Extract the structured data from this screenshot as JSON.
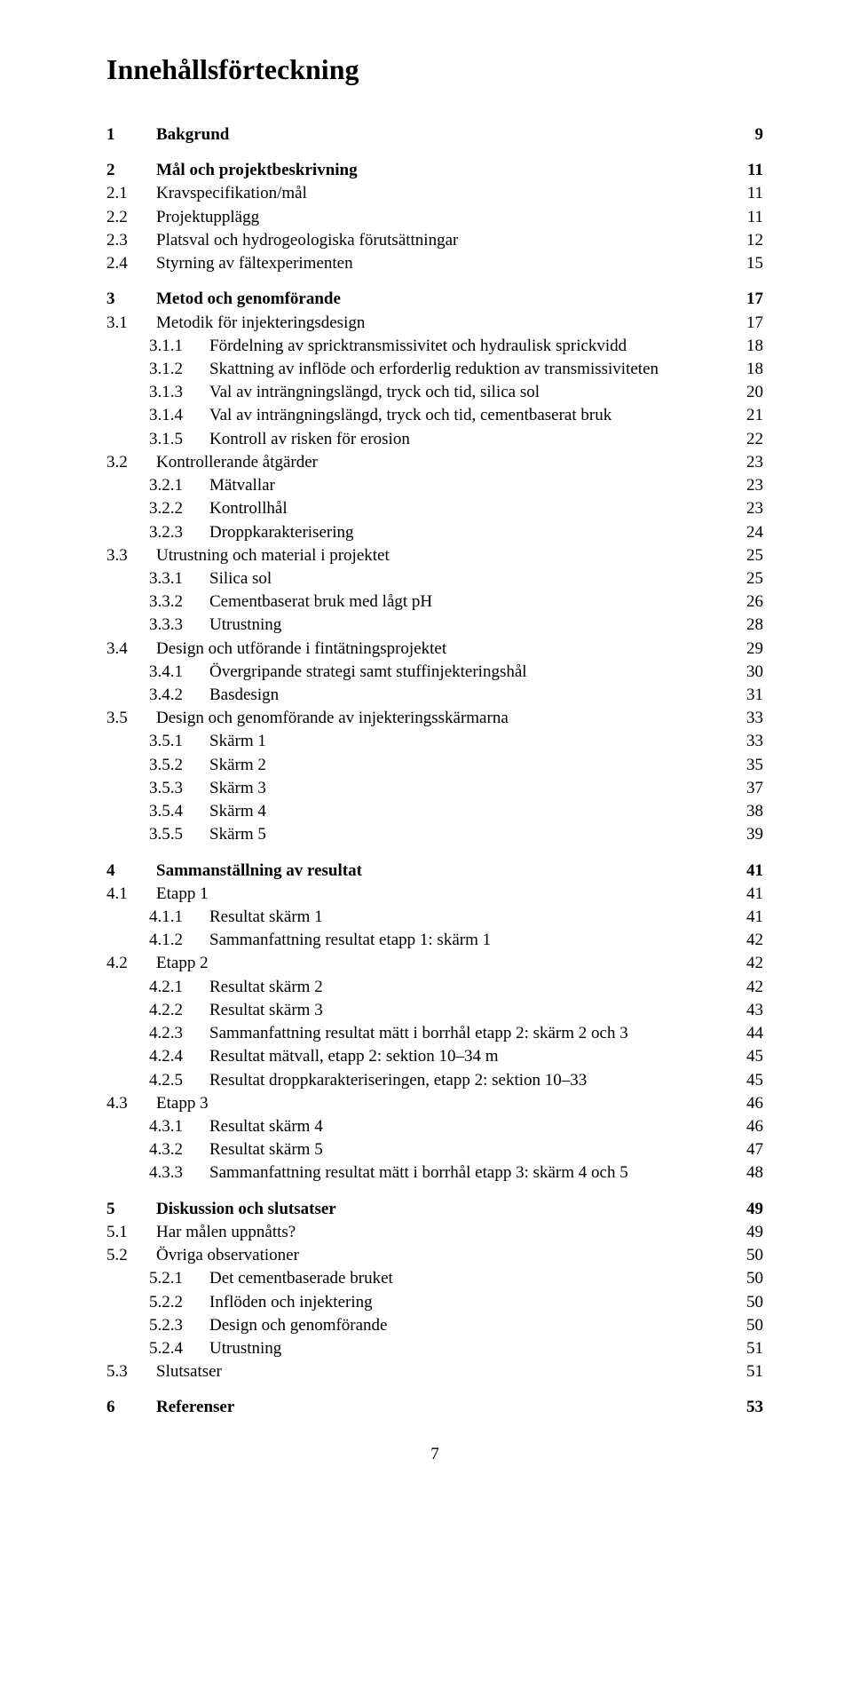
{
  "title": "Innehållsförteckning",
  "page_number": "7",
  "entries": [
    {
      "level": 1,
      "bold": true,
      "num": "1",
      "text": "Bakgrund",
      "page": "9",
      "gap_before": false
    },
    {
      "level": 1,
      "bold": true,
      "num": "2",
      "text": "Mål och projektbeskrivning",
      "page": "11",
      "gap_before": true
    },
    {
      "level": 2,
      "bold": false,
      "num": "2.1",
      "text": "Kravspecifikation/mål",
      "page": "11"
    },
    {
      "level": 2,
      "bold": false,
      "num": "2.2",
      "text": "Projektupplägg",
      "page": "11"
    },
    {
      "level": 2,
      "bold": false,
      "num": "2.3",
      "text": "Platsval och hydrogeologiska förutsättningar",
      "page": "12"
    },
    {
      "level": 2,
      "bold": false,
      "num": "2.4",
      "text": "Styrning av fältexperimenten",
      "page": "15"
    },
    {
      "level": 1,
      "bold": true,
      "num": "3",
      "text": "Metod och genomförande",
      "page": "17",
      "gap_before": true
    },
    {
      "level": 2,
      "bold": false,
      "num": "3.1",
      "text": "Metodik för injekteringsdesign",
      "page": "17"
    },
    {
      "level": 3,
      "bold": false,
      "num": "3.1.1",
      "text": "Fördelning av spricktransmissivitet och hydraulisk sprickvidd",
      "page": "18"
    },
    {
      "level": 3,
      "bold": false,
      "num": "3.1.2",
      "text": "Skattning av inflöde och erforderlig reduktion av transmissiviteten",
      "page": "18"
    },
    {
      "level": 3,
      "bold": false,
      "num": "3.1.3",
      "text": "Val av inträngningslängd, tryck och tid, silica sol",
      "page": "20"
    },
    {
      "level": 3,
      "bold": false,
      "num": "3.1.4",
      "text": "Val av inträngningslängd, tryck och tid, cementbaserat bruk",
      "page": "21"
    },
    {
      "level": 3,
      "bold": false,
      "num": "3.1.5",
      "text": "Kontroll av risken för erosion",
      "page": "22"
    },
    {
      "level": 2,
      "bold": false,
      "num": "3.2",
      "text": "Kontrollerande åtgärder",
      "page": "23"
    },
    {
      "level": 3,
      "bold": false,
      "num": "3.2.1",
      "text": "Mätvallar",
      "page": "23"
    },
    {
      "level": 3,
      "bold": false,
      "num": "3.2.2",
      "text": "Kontrollhål",
      "page": "23"
    },
    {
      "level": 3,
      "bold": false,
      "num": "3.2.3",
      "text": "Droppkarakterisering",
      "page": "24"
    },
    {
      "level": 2,
      "bold": false,
      "num": "3.3",
      "text": "Utrustning och material i projektet",
      "page": "25"
    },
    {
      "level": 3,
      "bold": false,
      "num": "3.3.1",
      "text": "Silica sol",
      "page": "25"
    },
    {
      "level": 3,
      "bold": false,
      "num": "3.3.2",
      "text": "Cementbaserat bruk med lågt pH",
      "page": "26"
    },
    {
      "level": 3,
      "bold": false,
      "num": "3.3.3",
      "text": "Utrustning",
      "page": "28"
    },
    {
      "level": 2,
      "bold": false,
      "num": "3.4",
      "text": "Design och utförande i fintätningsprojektet",
      "page": "29"
    },
    {
      "level": 3,
      "bold": false,
      "num": "3.4.1",
      "text": "Övergripande strategi samt stuffinjekteringshål",
      "page": "30"
    },
    {
      "level": 3,
      "bold": false,
      "num": "3.4.2",
      "text": "Basdesign",
      "page": "31"
    },
    {
      "level": 2,
      "bold": false,
      "num": "3.5",
      "text": "Design och genomförande av injekteringsskärmarna",
      "page": "33"
    },
    {
      "level": 3,
      "bold": false,
      "num": "3.5.1",
      "text": "Skärm 1",
      "page": "33"
    },
    {
      "level": 3,
      "bold": false,
      "num": "3.5.2",
      "text": "Skärm 2",
      "page": "35"
    },
    {
      "level": 3,
      "bold": false,
      "num": "3.5.3",
      "text": "Skärm 3",
      "page": "37"
    },
    {
      "level": 3,
      "bold": false,
      "num": "3.5.4",
      "text": "Skärm 4",
      "page": "38"
    },
    {
      "level": 3,
      "bold": false,
      "num": "3.5.5",
      "text": "Skärm 5",
      "page": "39"
    },
    {
      "level": 1,
      "bold": true,
      "num": "4",
      "text": "Sammanställning av resultat",
      "page": "41",
      "gap_before": true
    },
    {
      "level": 2,
      "bold": false,
      "num": "4.1",
      "text": "Etapp 1",
      "page": "41"
    },
    {
      "level": 3,
      "bold": false,
      "num": "4.1.1",
      "text": "Resultat skärm 1",
      "page": "41"
    },
    {
      "level": 3,
      "bold": false,
      "num": "4.1.2",
      "text": "Sammanfattning resultat etapp 1: skärm 1",
      "page": "42"
    },
    {
      "level": 2,
      "bold": false,
      "num": "4.2",
      "text": "Etapp 2",
      "page": "42"
    },
    {
      "level": 3,
      "bold": false,
      "num": "4.2.1",
      "text": "Resultat skärm 2",
      "page": "42"
    },
    {
      "level": 3,
      "bold": false,
      "num": "4.2.2",
      "text": "Resultat skärm 3",
      "page": "43"
    },
    {
      "level": 3,
      "bold": false,
      "num": "4.2.3",
      "text": "Sammanfattning resultat mätt i borrhål etapp 2: skärm 2 och 3",
      "page": "44"
    },
    {
      "level": 3,
      "bold": false,
      "num": "4.2.4",
      "text": "Resultat mätvall, etapp 2: sektion 10–34 m",
      "page": "45"
    },
    {
      "level": 3,
      "bold": false,
      "num": "4.2.5",
      "text": "Resultat droppkarakteriseringen, etapp 2: sektion 10–33",
      "page": "45"
    },
    {
      "level": 2,
      "bold": false,
      "num": "4.3",
      "text": "Etapp 3",
      "page": "46"
    },
    {
      "level": 3,
      "bold": false,
      "num": "4.3.1",
      "text": "Resultat skärm 4",
      "page": "46"
    },
    {
      "level": 3,
      "bold": false,
      "num": "4.3.2",
      "text": "Resultat skärm 5",
      "page": "47"
    },
    {
      "level": 3,
      "bold": false,
      "num": "4.3.3",
      "text": "Sammanfattning resultat mätt i borrhål etapp 3: skärm 4 och 5",
      "page": "48"
    },
    {
      "level": 1,
      "bold": true,
      "num": "5",
      "text": "Diskussion och slutsatser",
      "page": "49",
      "gap_before": true
    },
    {
      "level": 2,
      "bold": false,
      "num": "5.1",
      "text": "Har målen uppnåtts?",
      "page": "49"
    },
    {
      "level": 2,
      "bold": false,
      "num": "5.2",
      "text": "Övriga observationer",
      "page": "50"
    },
    {
      "level": 3,
      "bold": false,
      "num": "5.2.1",
      "text": "Det cementbaserade bruket",
      "page": "50"
    },
    {
      "level": 3,
      "bold": false,
      "num": "5.2.2",
      "text": "Inflöden och injektering",
      "page": "50"
    },
    {
      "level": 3,
      "bold": false,
      "num": "5.2.3",
      "text": "Design och genomförande",
      "page": "50"
    },
    {
      "level": 3,
      "bold": false,
      "num": "5.2.4",
      "text": "Utrustning",
      "page": "51"
    },
    {
      "level": 2,
      "bold": false,
      "num": "5.3",
      "text": "Slutsatser",
      "page": "51"
    },
    {
      "level": 1,
      "bold": true,
      "num": "6",
      "text": "Referenser",
      "page": "53",
      "gap_before": true
    }
  ]
}
